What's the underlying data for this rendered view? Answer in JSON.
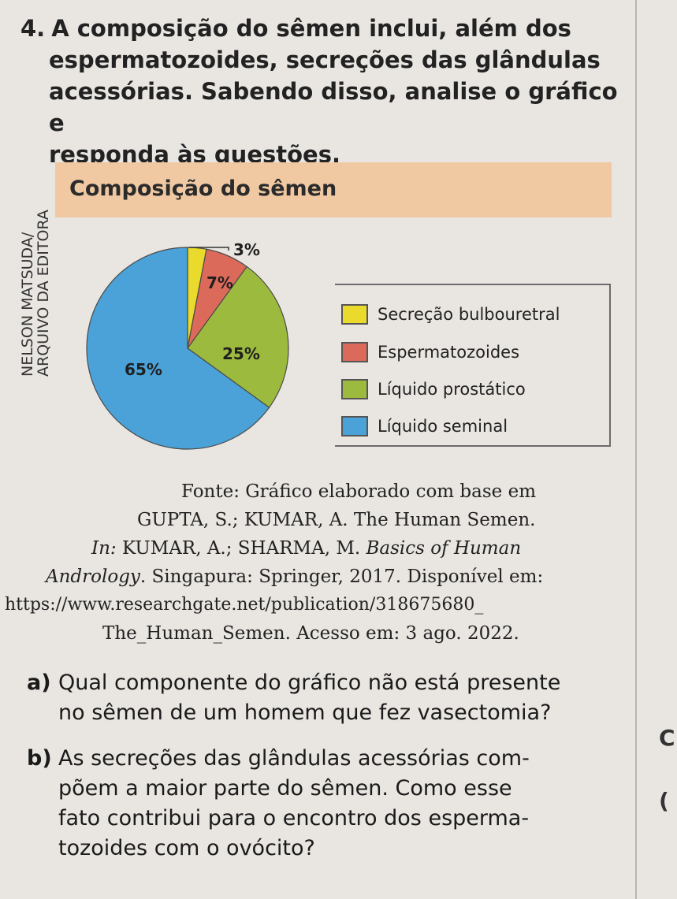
{
  "question": {
    "number": "4.",
    "lines": [
      "A composição do sêmen inclui, além dos",
      "espermatozoides, secreções das glândulas",
      "acessórias. Sabendo disso, analise o gráfico e",
      "responda às questões."
    ]
  },
  "chart_title": "Composição do sêmen",
  "credit": [
    "NELSON MATSUDA/",
    "ARQUIVO DA EDITORA"
  ],
  "chart_data": {
    "type": "pie",
    "title": "Composição do sêmen",
    "slices": [
      {
        "name": "Secreção bulbouretral",
        "value": 3,
        "label": "3%",
        "color": "#e9da2c"
      },
      {
        "name": "Espermatozoides",
        "value": 7,
        "label": "7%",
        "color": "#dc6a5b"
      },
      {
        "name": "Líquido prostático",
        "value": 25,
        "label": "25%",
        "color": "#9cba3e"
      },
      {
        "name": "Líquido seminal",
        "value": 65,
        "label": "65%",
        "color": "#4aa2d8"
      }
    ],
    "legend_position": "right"
  },
  "source": {
    "line1": "Fonte: Gráfico elaborado com base em",
    "line2": "GUPTA, S.; KUMAR, A. The Human Semen.",
    "line3_prefix": "In:",
    "line3_rest": " KUMAR, A.; SHARMA, M. ",
    "line3_italic": "Basics of Human",
    "line4_italic": "Andrology",
    "line4_rest": ". Singapura: Springer, 2017. Disponível em:",
    "line5": "https://www.researchgate.net/publication/318675680_",
    "line6": "The_Human_Semen. Acesso em: 3 ago. 2022."
  },
  "sub_a": {
    "letter": "a)",
    "line1": "Qual componente do gráfico não está presente",
    "line2": "no sêmen de um homem que fez vasectomia?"
  },
  "sub_b": {
    "letter": "b)",
    "line1": "As secreções das glândulas acessórias com-",
    "line2": "põem a maior parte do sêmen. Como esse",
    "line3": "fato contribui para o encontro dos esperma-",
    "line4": "tozoides com o ovócito?"
  },
  "side_marks": [
    "C",
    "("
  ]
}
